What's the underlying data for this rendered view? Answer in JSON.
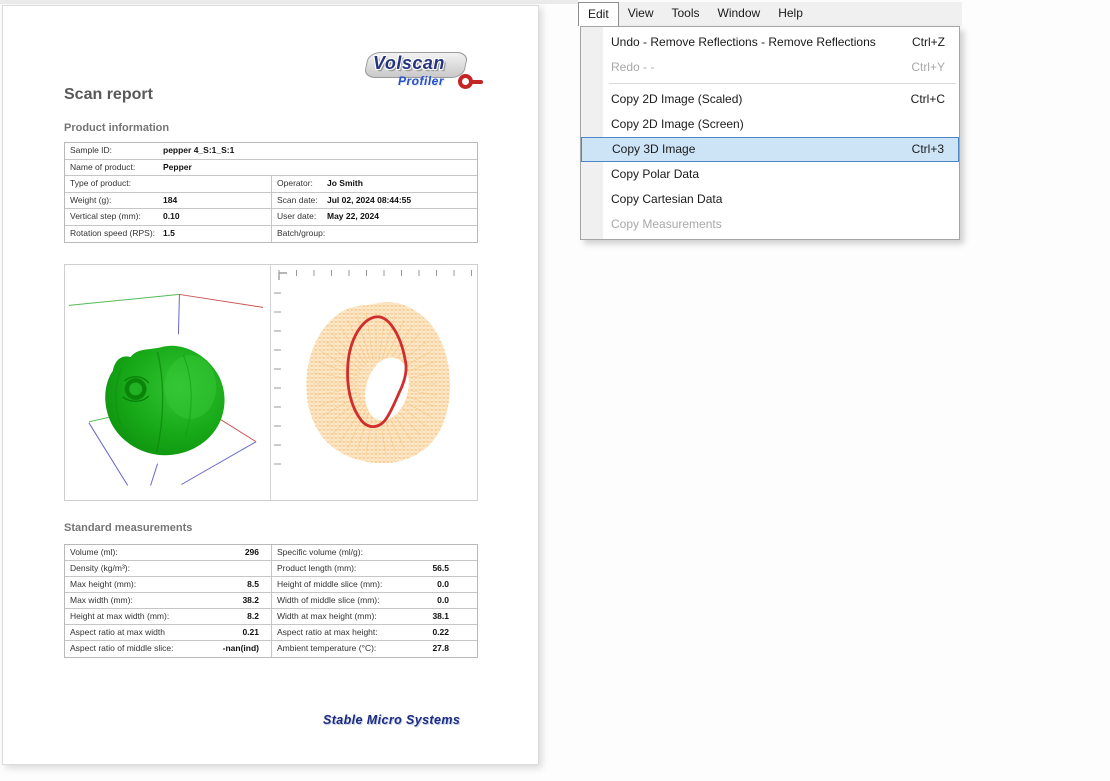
{
  "report": {
    "title": "Scan report",
    "logo": {
      "line1": "Volscan",
      "line2": "Profiler"
    },
    "footer_logo": "Stable Micro Systems",
    "product_info": {
      "heading": "Product information",
      "rows_full": [
        {
          "label": "Sample ID:",
          "value": "pepper 4_S:1_S:1"
        },
        {
          "label": "Name of product:",
          "value": "Pepper"
        }
      ],
      "rows_split": [
        {
          "l_label": "Type of product:",
          "l_value": "",
          "r_label": "Operator:",
          "r_value": "Jo Smith"
        },
        {
          "l_label": "Weight (g):",
          "l_value": "184",
          "r_label": "Scan date:",
          "r_value": "Jul 02, 2024 08:44:55"
        },
        {
          "l_label": "Vertical step (mm):",
          "l_value": "0.10",
          "r_label": "User date:",
          "r_value": "May 22, 2024"
        },
        {
          "l_label": "Rotation speed (RPS):",
          "l_value": "1.5",
          "r_label": "Batch/group:",
          "r_value": ""
        }
      ]
    },
    "measurements": {
      "heading": "Standard measurements",
      "rows": [
        {
          "l_label": "Volume (ml):",
          "l_value": "296",
          "r_label": "Specific volume (ml/g):",
          "r_value": ""
        },
        {
          "l_label": "Density (kg/m³):",
          "l_value": "",
          "r_label": "Product length (mm):",
          "r_value": "56.5"
        },
        {
          "l_label": "Max height (mm):",
          "l_value": "8.5",
          "r_label": "Height of middle slice (mm):",
          "r_value": "0.0"
        },
        {
          "l_label": "Max width (mm):",
          "l_value": "38.2",
          "r_label": "Width of middle slice (mm):",
          "r_value": "0.0"
        },
        {
          "l_label": "Height at max width (mm):",
          "l_value": "8.2",
          "r_label": "Width at max height (mm):",
          "r_value": "38.1"
        },
        {
          "l_label": "Aspect ratio at max width",
          "l_value": "0.21",
          "r_label": "Aspect ratio at max height:",
          "r_value": "0.22"
        },
        {
          "l_label": "Aspect ratio of middle slice:",
          "l_value": "-nan(ind)",
          "r_label": "Ambient temperature (°C):",
          "r_value": "27.8"
        }
      ]
    },
    "visualization": {
      "model_color": "#17a817",
      "cloud_color": "#f2b35c",
      "contour_color": "#d22d2d",
      "axis_colors": {
        "x": "#cc4444",
        "y": "#44bb44",
        "z": "#5555cc"
      }
    }
  },
  "menu": {
    "bar": [
      "Edit",
      "View",
      "Tools",
      "Window",
      "Help"
    ],
    "active": "Edit",
    "items": [
      {
        "label": "Undo - Remove Reflections - Remove Reflections",
        "shortcut": "Ctrl+Z",
        "state": "normal"
      },
      {
        "label": "Redo - -",
        "shortcut": "Ctrl+Y",
        "state": "disabled"
      },
      {
        "separator": true
      },
      {
        "label": "Copy 2D Image (Scaled)",
        "shortcut": "Ctrl+C",
        "state": "normal"
      },
      {
        "label": "Copy 2D Image (Screen)",
        "shortcut": "",
        "state": "normal"
      },
      {
        "label": "Copy 3D Image",
        "shortcut": "Ctrl+3",
        "state": "selected"
      },
      {
        "label": "Copy Polar Data",
        "shortcut": "",
        "state": "normal"
      },
      {
        "label": "Copy Cartesian Data",
        "shortcut": "",
        "state": "normal"
      },
      {
        "label": "Copy Measurements",
        "shortcut": "",
        "state": "disabled"
      }
    ],
    "colors": {
      "highlight_bg": "#cde4f7",
      "highlight_border": "#4a86c8"
    }
  }
}
